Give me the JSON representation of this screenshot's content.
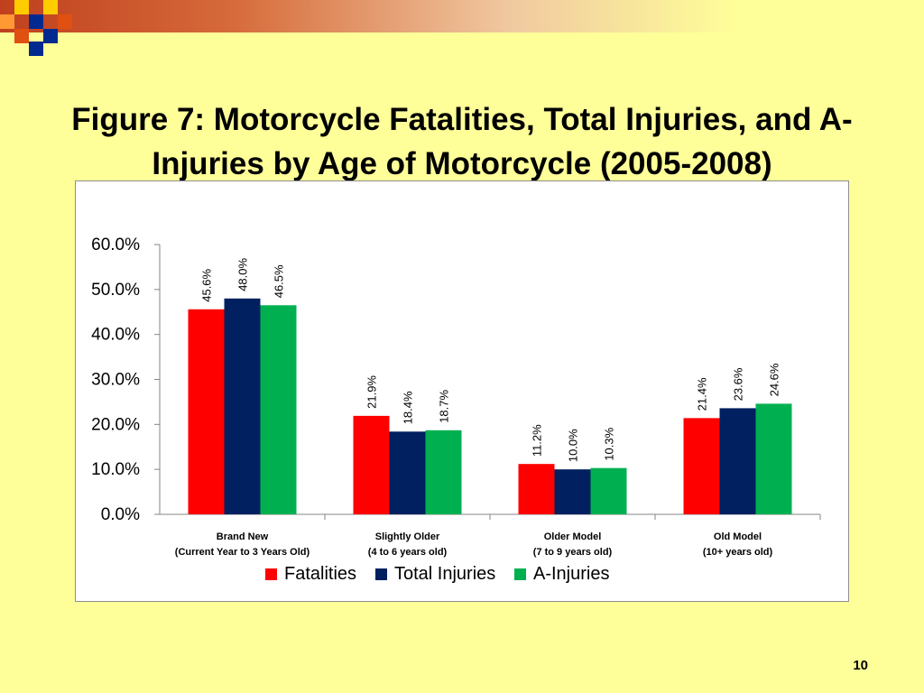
{
  "slide": {
    "title": "Figure 7: Motorcycle Fatalities, Total Injuries, and A-Injuries by Age of Motorcycle (2005-2008)",
    "page_number": "10"
  },
  "colors": {
    "background": "#ffff99",
    "fatalities": "#ff0000",
    "total_injuries": "#002060",
    "a_injuries": "#00b050"
  },
  "chart_data": {
    "type": "bar",
    "title": "",
    "xlabel": "",
    "ylabel": "",
    "ylim": [
      0,
      60
    ],
    "yticks": [
      "0.0%",
      "10.0%",
      "20.0%",
      "30.0%",
      "40.0%",
      "50.0%",
      "60.0%"
    ],
    "categories": [
      [
        "Brand New",
        "(Current Year to 3 Years Old)"
      ],
      [
        "Slightly Older",
        "(4 to 6 years old)"
      ],
      [
        "Older Model",
        "(7 to 9 years old)"
      ],
      [
        "Old Model",
        "(10+ years old)"
      ]
    ],
    "series": [
      {
        "name": "Fatalities",
        "color": "#ff0000",
        "values": [
          45.6,
          21.9,
          11.2,
          21.4
        ],
        "labels": [
          "45.6%",
          "21.9%",
          "11.2%",
          "21.4%"
        ]
      },
      {
        "name": "Total Injuries",
        "color": "#002060",
        "values": [
          48.0,
          18.4,
          10.0,
          23.6
        ],
        "labels": [
          "48.0%",
          "18.4%",
          "10.0%",
          "23.6%"
        ]
      },
      {
        "name": "A-Injuries",
        "color": "#00b050",
        "values": [
          46.5,
          18.7,
          10.3,
          24.6
        ],
        "labels": [
          "46.5%",
          "18.7%",
          "10.3%",
          "24.6%"
        ]
      }
    ],
    "grid": false,
    "legend": "bottom"
  }
}
